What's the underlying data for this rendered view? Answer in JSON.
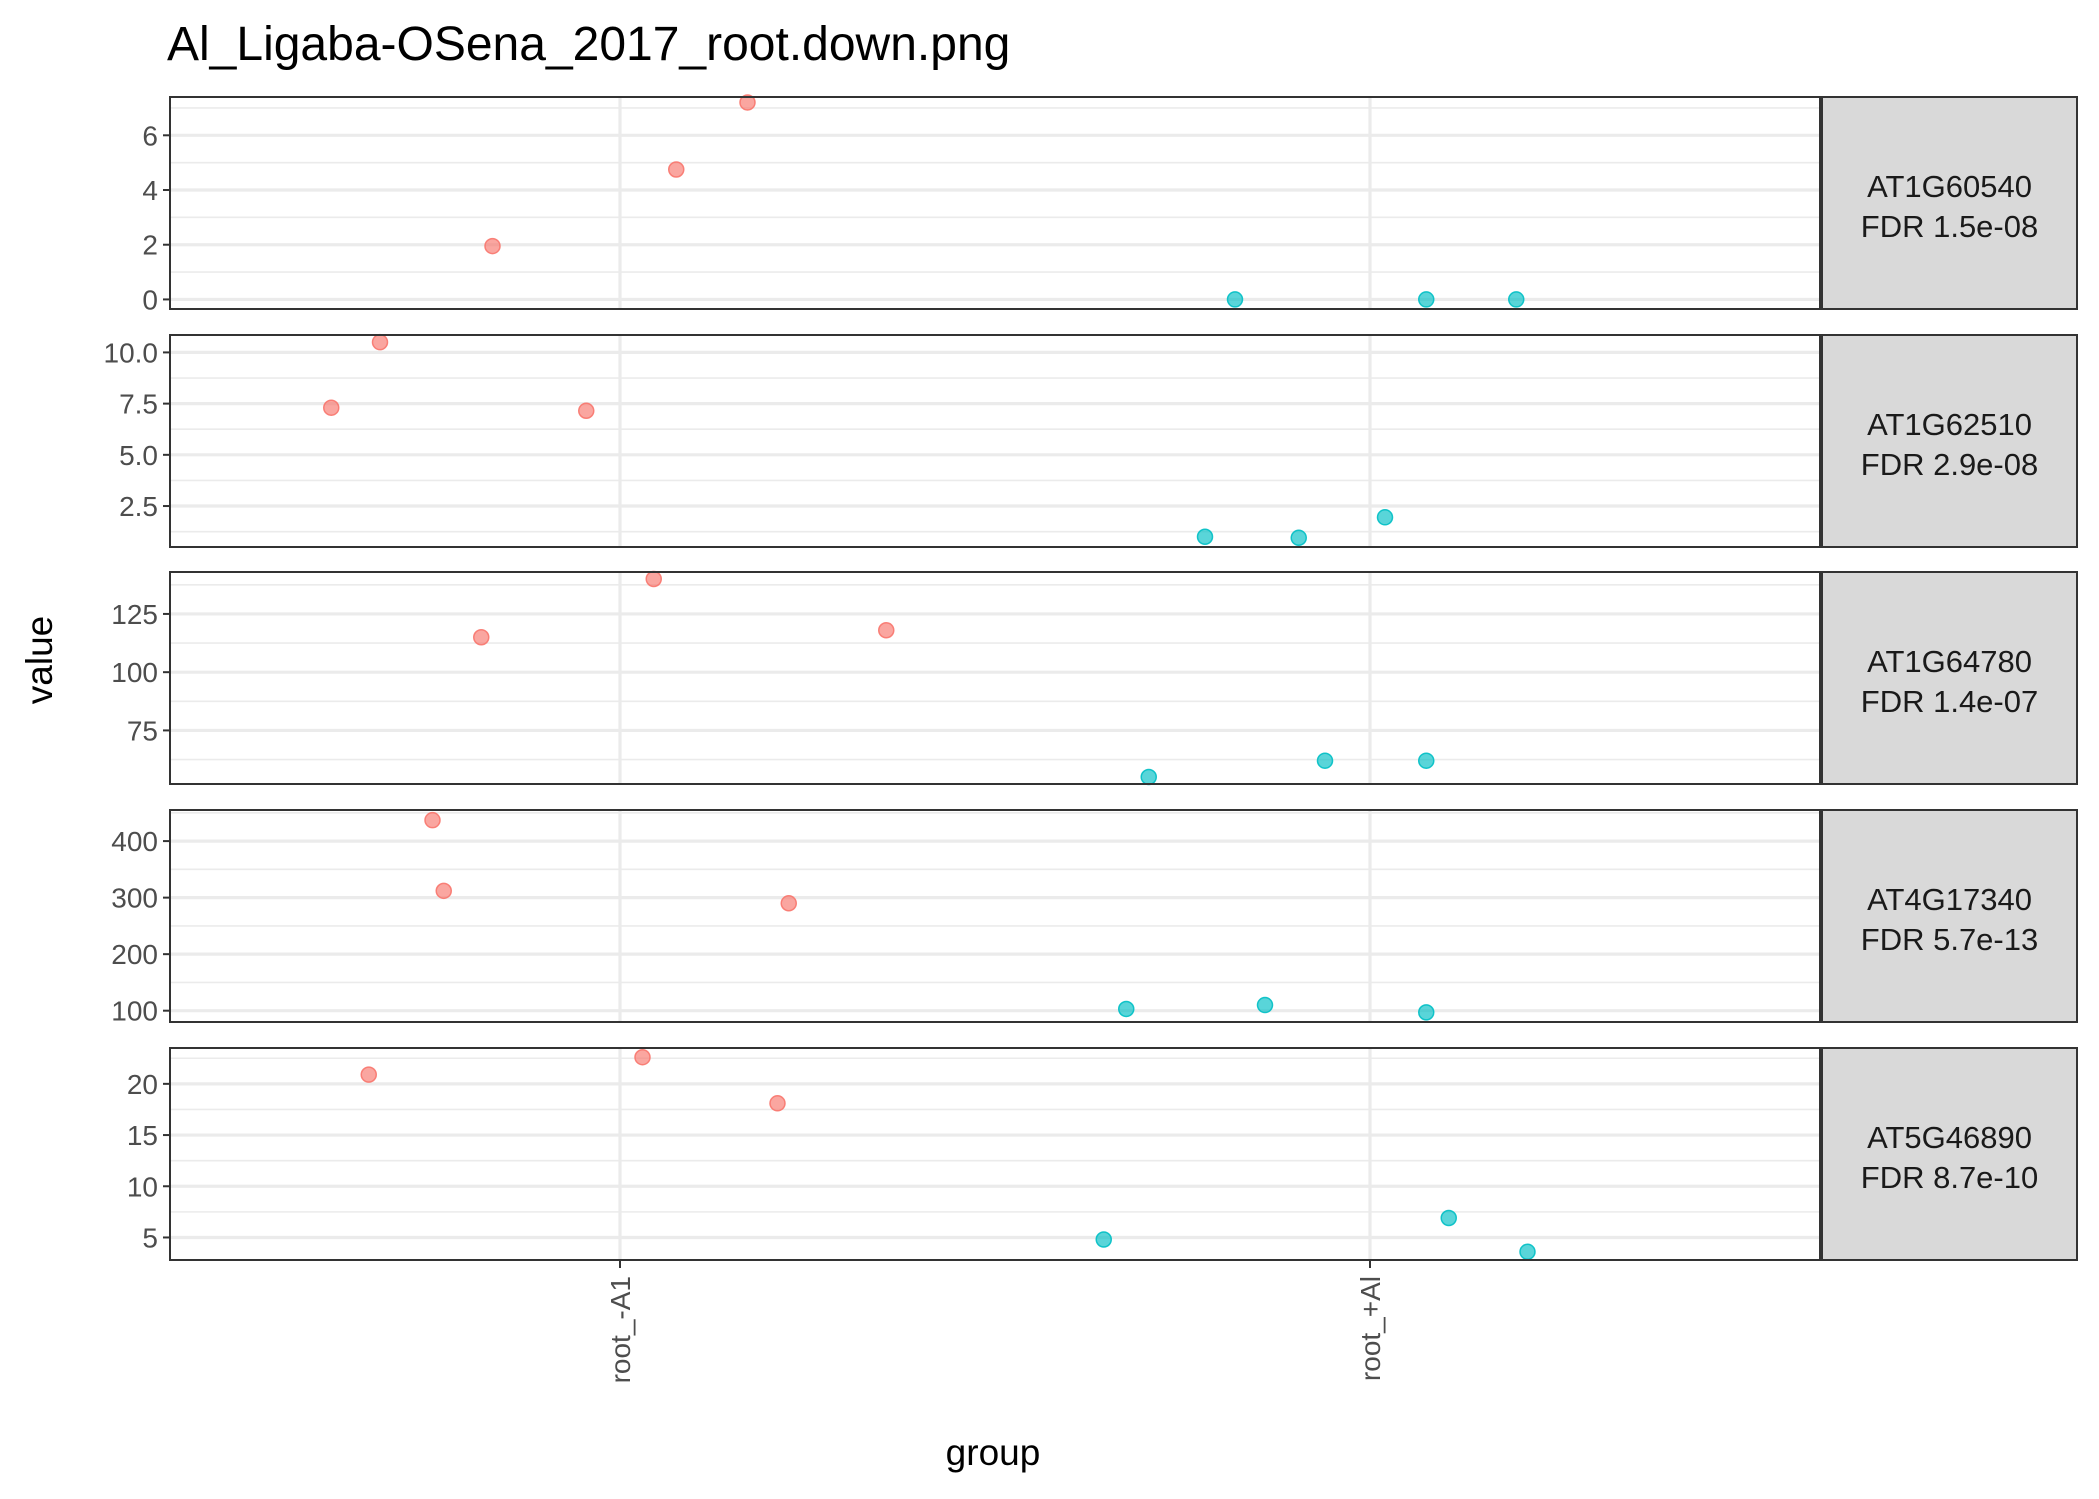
{
  "title": "Al_Ligaba-OSena_2017_root.down.png",
  "xlabel": "group",
  "ylabel": "value",
  "colors": {
    "root_-A1": "#F8766D",
    "root_+Al": "#00BFC4",
    "panel_border": "#333333",
    "grid": "#ebebeb",
    "strip_fill": "#d9d9d9"
  },
  "chart_data": {
    "type": "scatter",
    "title": "Al_Ligaba-OSena_2017_root.down.png",
    "xlabel": "group",
    "ylabel": "value",
    "categories": [
      "root_-A1",
      "root_+Al"
    ],
    "grid": true,
    "legend": "none",
    "panels": [
      {
        "strip": [
          "AT1G60540",
          "FDR 1.5e-08"
        ],
        "ylim": [
          -0.35,
          7.4
        ],
        "yticks": [
          0,
          2,
          4,
          6
        ],
        "ytick_labels": [
          "0",
          "2",
          "4",
          "6"
        ],
        "points": [
          {
            "group": "root_-A1",
            "jitter": -0.17,
            "value": 1.95
          },
          {
            "group": "root_-A1",
            "jitter": 0.075,
            "value": 4.75
          },
          {
            "group": "root_-A1",
            "jitter": 0.17,
            "value": 7.2
          },
          {
            "group": "root_+Al",
            "jitter": -0.18,
            "value": 0.0
          },
          {
            "group": "root_+Al",
            "jitter": 0.075,
            "value": 0.0
          },
          {
            "group": "root_+Al",
            "jitter": 0.195,
            "value": 0.0
          }
        ]
      },
      {
        "strip": [
          "AT1G62510",
          "FDR 2.9e-08"
        ],
        "ylim": [
          0.5,
          10.85
        ],
        "yticks": [
          2.5,
          5.0,
          7.5,
          10.0
        ],
        "ytick_labels": [
          "2.5",
          "5.0",
          "7.5",
          "10.0"
        ],
        "points": [
          {
            "group": "root_-A1",
            "jitter": -0.32,
            "value": 10.5
          },
          {
            "group": "root_-A1",
            "jitter": -0.385,
            "value": 7.3
          },
          {
            "group": "root_-A1",
            "jitter": -0.045,
            "value": 7.15
          },
          {
            "group": "root_+Al",
            "jitter": -0.22,
            "value": 1.0
          },
          {
            "group": "root_+Al",
            "jitter": -0.095,
            "value": 0.95
          },
          {
            "group": "root_+Al",
            "jitter": 0.02,
            "value": 1.95
          }
        ]
      },
      {
        "strip": [
          "AT1G64780",
          "FDR 1.4e-07"
        ],
        "ylim": [
          52,
          143
        ],
        "yticks": [
          75,
          100,
          125
        ],
        "ytick_labels": [
          "75",
          "100",
          "125"
        ],
        "points": [
          {
            "group": "root_-A1",
            "jitter": -0.185,
            "value": 115
          },
          {
            "group": "root_-A1",
            "jitter": 0.045,
            "value": 140
          },
          {
            "group": "root_-A1",
            "jitter": 0.355,
            "value": 118
          },
          {
            "group": "root_+Al",
            "jitter": -0.295,
            "value": 55
          },
          {
            "group": "root_+Al",
            "jitter": -0.06,
            "value": 62
          },
          {
            "group": "root_+Al",
            "jitter": 0.075,
            "value": 62
          }
        ]
      },
      {
        "strip": [
          "AT4G17340",
          "FDR 5.7e-13"
        ],
        "ylim": [
          80,
          455
        ],
        "yticks": [
          100,
          200,
          300,
          400
        ],
        "ytick_labels": [
          "100",
          "200",
          "300",
          "400"
        ],
        "points": [
          {
            "group": "root_-A1",
            "jitter": -0.25,
            "value": 437
          },
          {
            "group": "root_-A1",
            "jitter": -0.235,
            "value": 312
          },
          {
            "group": "root_-A1",
            "jitter": 0.225,
            "value": 290
          },
          {
            "group": "root_+Al",
            "jitter": -0.325,
            "value": 103
          },
          {
            "group": "root_+Al",
            "jitter": -0.14,
            "value": 110
          },
          {
            "group": "root_+Al",
            "jitter": 0.075,
            "value": 97
          }
        ]
      },
      {
        "strip": [
          "AT5G46890",
          "FDR 8.7e-10"
        ],
        "ylim": [
          2.8,
          23.5
        ],
        "yticks": [
          5,
          10,
          15,
          20
        ],
        "ytick_labels": [
          "5",
          "10",
          "15",
          "20"
        ],
        "points": [
          {
            "group": "root_-A1",
            "jitter": -0.335,
            "value": 20.9
          },
          {
            "group": "root_-A1",
            "jitter": 0.03,
            "value": 22.6
          },
          {
            "group": "root_-A1",
            "jitter": 0.21,
            "value": 18.1
          },
          {
            "group": "root_+Al",
            "jitter": -0.355,
            "value": 4.8
          },
          {
            "group": "root_+Al",
            "jitter": 0.105,
            "value": 6.9
          },
          {
            "group": "root_+Al",
            "jitter": 0.21,
            "value": 3.6
          }
        ]
      }
    ]
  }
}
